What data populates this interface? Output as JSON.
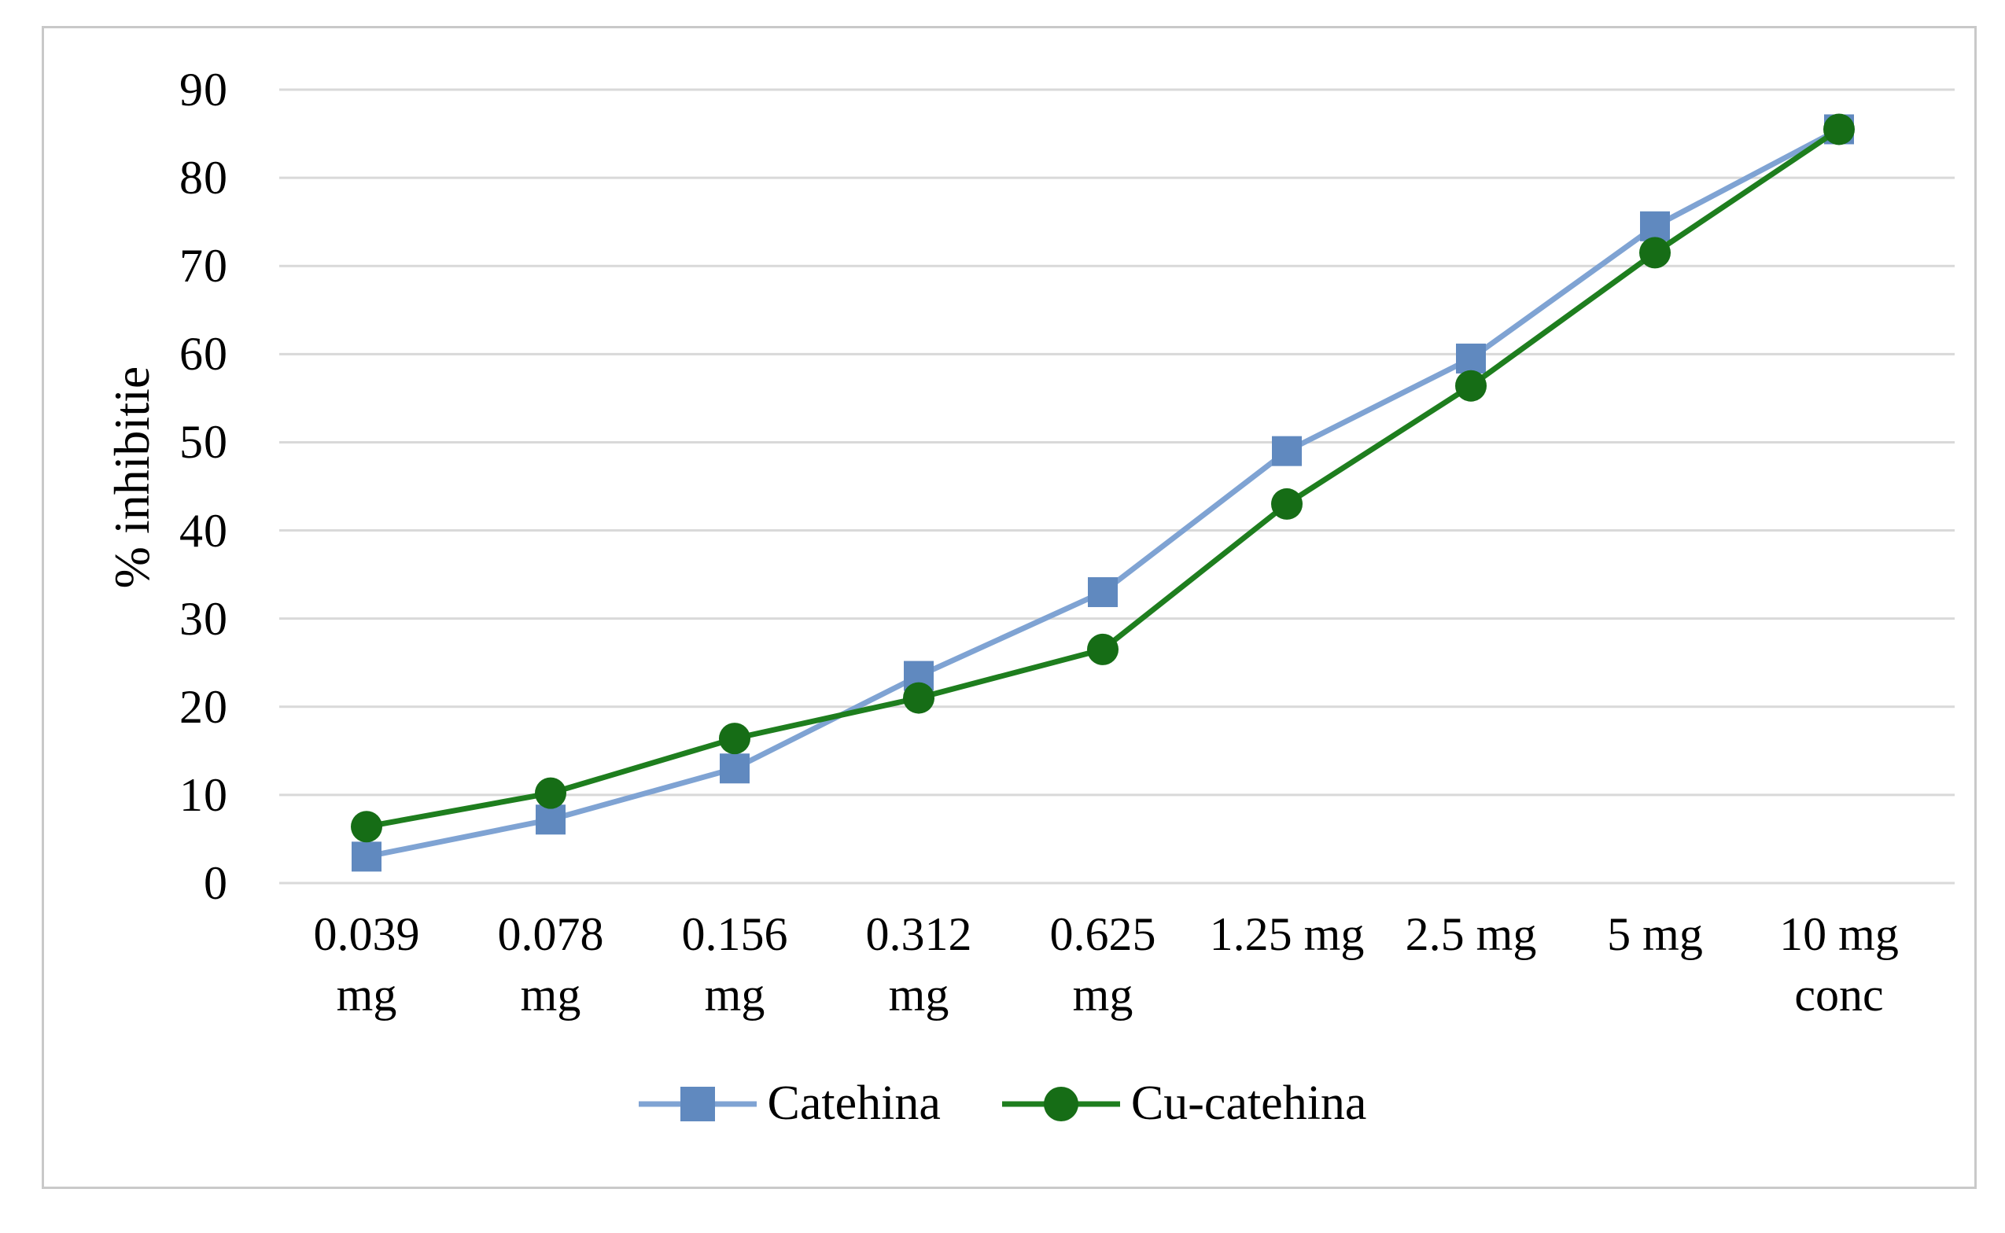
{
  "chart_data": {
    "type": "line",
    "title": "",
    "xlabel": "",
    "ylabel": "% inhibitie",
    "ylim": [
      0,
      90
    ],
    "ytick_step": 10,
    "yticks": [
      0,
      10,
      20,
      30,
      40,
      50,
      60,
      70,
      80,
      90
    ],
    "grid": "horizontal",
    "legend_position": "bottom",
    "categories": [
      "0.039\nmg",
      "0.078\nmg",
      "0.156\nmg",
      "0.312\nmg",
      "0.625\nmg",
      "1.25 mg",
      "2.5 mg",
      "5 mg",
      "10 mg\nconc"
    ],
    "series": [
      {
        "name": "Catehina",
        "marker": "square",
        "marker_color": "#6089BF",
        "line_color": "#7FA3D3",
        "values": [
          3,
          7.2,
          13,
          23.5,
          33,
          49,
          59.5,
          74.5,
          85.5
        ]
      },
      {
        "name": "Cu-catehina",
        "marker": "circle",
        "marker_color": "#166D16",
        "line_color": "#1E7E1E",
        "values": [
          6.4,
          10.2,
          16.4,
          21,
          26.5,
          43,
          56.4,
          71.5,
          85.5
        ]
      }
    ]
  },
  "colors": {
    "gridline": "#D9D9D9",
    "chart_border": "#C9C9C9",
    "background": "#FFFFFF",
    "text": "#000000"
  }
}
